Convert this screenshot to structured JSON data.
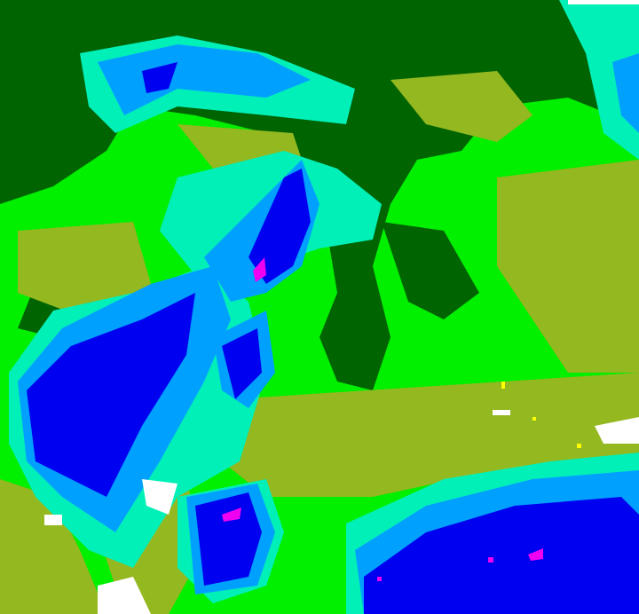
{
  "map": {
    "palette": {
      "bright_green": "#00f000",
      "dark_green": "#006400",
      "olive": "#94b820",
      "aquamarine": "#00f0b8",
      "light_blue": "#00a0ff",
      "medium_blue": "#4070ff",
      "blue": "#0000f0",
      "magenta": "#f000f0",
      "white": "#ffffff",
      "yellow": "#ffff00"
    }
  }
}
